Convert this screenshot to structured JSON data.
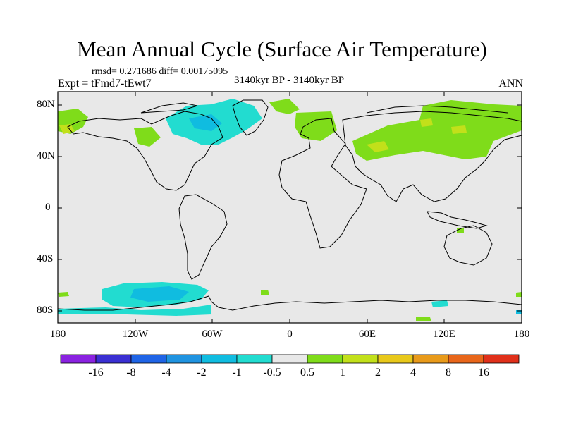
{
  "title": "Mean Annual Cycle (Surface Air Temperature)",
  "stats_line": "rmsd= 0.271686  diff= 0.00175095",
  "experiment_label": "Expt = tFmd7-tEwt7",
  "period_label": "3140kyr BP - 3140kyr BP",
  "season_label": "ANN",
  "lat_labels": [
    "80N",
    "40N",
    "0",
    "40S",
    "80S"
  ],
  "lon_labels": [
    "180",
    "120W",
    "60W",
    "0",
    "60E",
    "120E",
    "180"
  ],
  "colorbar": {
    "labels": [
      "-16",
      "-8",
      "-4",
      "-2",
      "-1",
      "-0.5",
      "0.5",
      "1",
      "2",
      "4",
      "8",
      "16"
    ],
    "colors": [
      "#8a22e0",
      "#3a2fd2",
      "#1f64e6",
      "#1f93e0",
      "#10bce0",
      "#22dcd0",
      "#e8e8e8",
      "#7fdc1a",
      "#c2e01a",
      "#e8c81a",
      "#e89a1a",
      "#e8661a",
      "#e0301a"
    ]
  },
  "colors": {
    "neutral_fill": "#e8e8e8",
    "warm_light": "#7fdc1a",
    "warm_mid": "#c2e01a",
    "cool_light": "#22dcd0",
    "cool_mid": "#10bce0"
  }
}
